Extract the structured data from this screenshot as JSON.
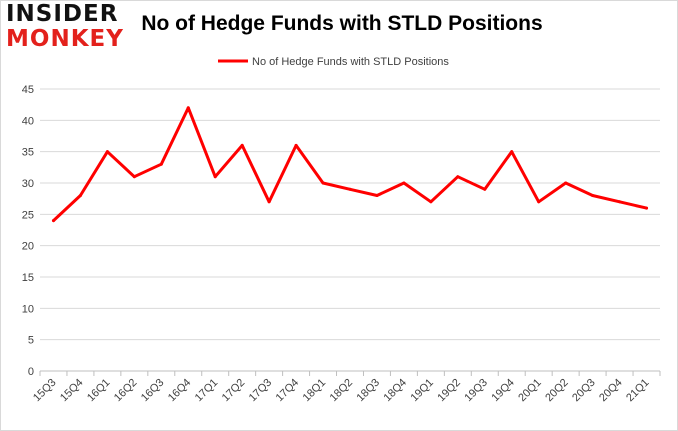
{
  "logo": {
    "line1": "INSIDER",
    "line2": "MONKEY"
  },
  "chart_data": {
    "type": "line",
    "title": "No of Hedge Funds with STLD Positions",
    "xlabel": "",
    "ylabel": "",
    "ylim": [
      0,
      45
    ],
    "yticks": [
      0,
      5,
      10,
      15,
      20,
      25,
      30,
      35,
      40,
      45
    ],
    "grid": true,
    "legend_position": "top",
    "categories": [
      "15Q3",
      "15Q4",
      "16Q1",
      "16Q2",
      "16Q3",
      "16Q4",
      "17Q1",
      "17Q2",
      "17Q3",
      "17Q4",
      "18Q1",
      "18Q2",
      "18Q3",
      "18Q4",
      "19Q1",
      "19Q2",
      "19Q3",
      "19Q4",
      "20Q1",
      "20Q2",
      "20Q3",
      "20Q4",
      "21Q1"
    ],
    "series": [
      {
        "name": "No of Hedge Funds with STLD Positions",
        "color": "#ff0000",
        "values": [
          24,
          28,
          35,
          31,
          33,
          42,
          31,
          36,
          27,
          36,
          30,
          29,
          28,
          30,
          27,
          31,
          29,
          35,
          27,
          30,
          28,
          27,
          26
        ]
      }
    ]
  }
}
